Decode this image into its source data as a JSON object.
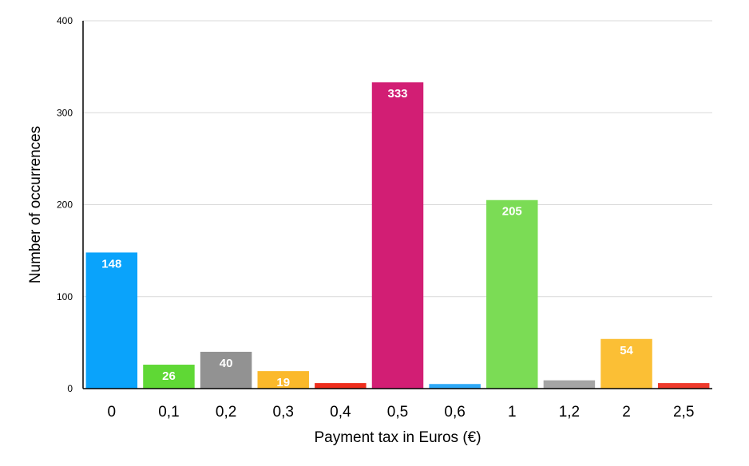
{
  "chart_data": {
    "type": "bar",
    "title": "",
    "xlabel": "Payment tax in Euros (€)",
    "ylabel": "Number of occurrences",
    "ylim": [
      0,
      400
    ],
    "yticks": [
      0,
      100,
      200,
      300,
      400
    ],
    "grid": true,
    "legend": "none",
    "categories": [
      "0",
      "0,1",
      "0,2",
      "0,3",
      "0,4",
      "0,5",
      "0,6",
      "1",
      "1,2",
      "2",
      "2,5"
    ],
    "values": [
      148,
      26,
      40,
      19,
      6,
      333,
      5,
      205,
      9,
      54,
      6
    ],
    "data_labels": [
      "148",
      "26",
      "40",
      "19",
      "",
      "333",
      "",
      "205",
      "",
      "54",
      ""
    ],
    "colors": [
      "#0aa3fb",
      "#5fd835",
      "#929292",
      "#fbb92b",
      "#ee2e1d",
      "#d21e74",
      "#2ea9f7",
      "#7bdc55",
      "#a5a5a5",
      "#fbbf35",
      "#ee3a2c"
    ]
  }
}
